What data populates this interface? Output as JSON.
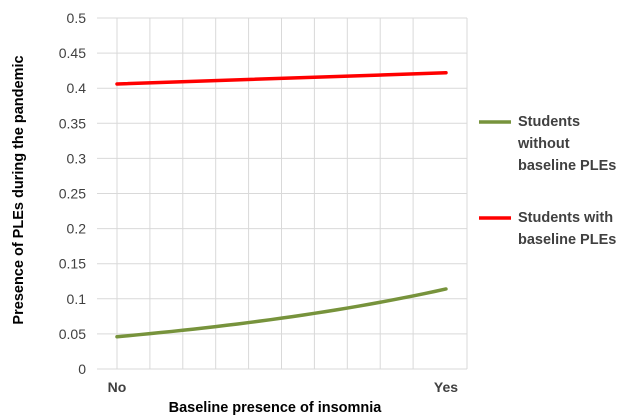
{
  "chart_data": {
    "type": "line",
    "categories": [
      "No",
      "Yes"
    ],
    "xlabel": "Baseline presence of insomnia",
    "ylabel": "Presence of PLEs during the pandemic",
    "ylim": [
      0,
      0.5
    ],
    "yticks": [
      "0",
      "0.05",
      "0.1",
      "0.15",
      "0.2",
      "0.25",
      "0.3",
      "0.35",
      "0.4",
      "0.45",
      "0.5"
    ],
    "grid": true,
    "legend_position": "right",
    "series": [
      {
        "name_lines": [
          "Students",
          "without",
          "baseline PLEs"
        ],
        "color": "#77933c",
        "curve": "convex",
        "values": [
          0.046,
          0.114
        ]
      },
      {
        "name_lines": [
          "Students with",
          "baseline PLEs"
        ],
        "color": "#ff0000",
        "curve": "straight",
        "values": [
          0.406,
          0.422
        ]
      }
    ]
  }
}
